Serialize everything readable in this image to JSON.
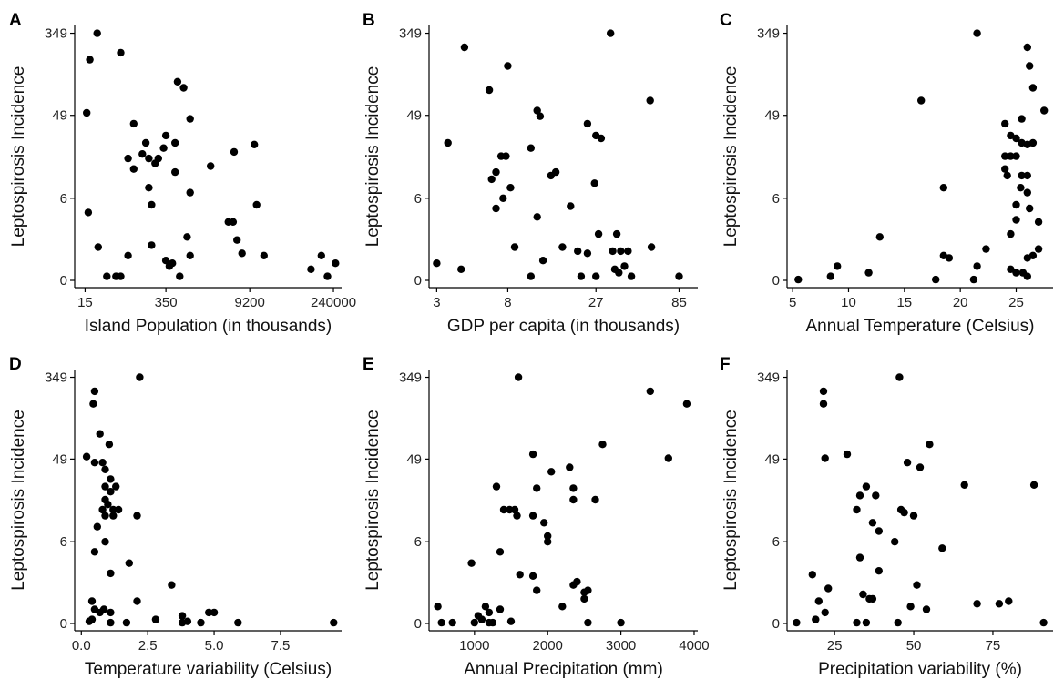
{
  "colors": {
    "point": "#000000",
    "axis": "#000000",
    "background": "#ffffff"
  },
  "chart_data": [
    {
      "panel": "A",
      "type": "scatter",
      "xlabel": "Island Population (in thousands)",
      "ylabel": "Leptospirosis Incidence",
      "xscale": "log",
      "yscale": "log1p",
      "xticks": [
        15,
        350,
        9200,
        240000
      ],
      "xtick_labels": [
        "15",
        "350",
        "9200",
        "240000"
      ],
      "yticks": [
        0,
        6,
        49,
        349
      ],
      "ytick_labels": [
        "0",
        "6",
        "49",
        "349"
      ],
      "xlim": [
        10,
        330000
      ],
      "ylim": [
        0,
        420
      ],
      "points": [
        [
          18,
          186
        ],
        [
          24,
          349
        ],
        [
          60,
          220
        ],
        [
          16,
          52
        ],
        [
          100,
          40
        ],
        [
          350,
          30
        ],
        [
          550,
          110
        ],
        [
          700,
          95
        ],
        [
          160,
          25
        ],
        [
          500,
          25
        ],
        [
          900,
          45
        ],
        [
          180,
          17
        ],
        [
          140,
          19
        ],
        [
          230,
          15
        ],
        [
          320,
          22
        ],
        [
          260,
          17
        ],
        [
          80,
          17
        ],
        [
          100,
          13
        ],
        [
          180,
          8
        ],
        [
          500,
          12
        ],
        [
          2000,
          14
        ],
        [
          200,
          5
        ],
        [
          5000,
          20
        ],
        [
          11000,
          24
        ],
        [
          12000,
          5
        ],
        [
          900,
          7
        ],
        [
          4000,
          3
        ],
        [
          4800,
          3
        ],
        [
          5600,
          1.6
        ],
        [
          17,
          4
        ],
        [
          800,
          1.8
        ],
        [
          25,
          1.2
        ],
        [
          200,
          1.3
        ],
        [
          80,
          0.8
        ],
        [
          400,
          0.4
        ],
        [
          350,
          0.6
        ],
        [
          450,
          0.5
        ],
        [
          900,
          0.8
        ],
        [
          35,
          0.1
        ],
        [
          50,
          0.1
        ],
        [
          60,
          0.1
        ],
        [
          600,
          0.1
        ],
        [
          6800,
          0.9
        ],
        [
          16000,
          0.8
        ],
        [
          100000,
          0.3
        ],
        [
          150000,
          0.8
        ],
        [
          190000,
          0.1
        ],
        [
          260000,
          0.5
        ]
      ]
    },
    {
      "panel": "B",
      "type": "scatter",
      "xlabel": "GDP per capita (in thousands)",
      "ylabel": "Leptospirosis Incidence",
      "xscale": "log",
      "yscale": "log1p",
      "xticks": [
        3,
        8,
        27,
        85
      ],
      "xtick_labels": [
        "3",
        "8",
        "27",
        "85"
      ],
      "yticks": [
        0,
        6,
        49,
        349
      ],
      "ytick_labels": [
        "0",
        "6",
        "49",
        "349"
      ],
      "xlim": [
        2.7,
        110
      ],
      "ylim": [
        0,
        420
      ],
      "points": [
        [
          4.4,
          250
        ],
        [
          33,
          349
        ],
        [
          8,
          160
        ],
        [
          6.2,
          90
        ],
        [
          12,
          55
        ],
        [
          12.5,
          48
        ],
        [
          24,
          40
        ],
        [
          27,
          30
        ],
        [
          29,
          28
        ],
        [
          57,
          70
        ],
        [
          3.5,
          25
        ],
        [
          7.3,
          18
        ],
        [
          7.8,
          18
        ],
        [
          11,
          22
        ],
        [
          6.4,
          10
        ],
        [
          6.8,
          12
        ],
        [
          8.3,
          8
        ],
        [
          7.5,
          6
        ],
        [
          14.5,
          11
        ],
        [
          15.5,
          12
        ],
        [
          26.5,
          9
        ],
        [
          6.8,
          4.5
        ],
        [
          19,
          4.8
        ],
        [
          12,
          3.5
        ],
        [
          28,
          2
        ],
        [
          36,
          2
        ],
        [
          8.8,
          1.2
        ],
        [
          17,
          1.2
        ],
        [
          21,
          1
        ],
        [
          24,
          0.9
        ],
        [
          34,
          1
        ],
        [
          38,
          1
        ],
        [
          42,
          1
        ],
        [
          58,
          1.2
        ],
        [
          3,
          0.5
        ],
        [
          4.2,
          0.3
        ],
        [
          11,
          0.1
        ],
        [
          13,
          0.6
        ],
        [
          22,
          0.1
        ],
        [
          27,
          0.1
        ],
        [
          35,
          0.3
        ],
        [
          37,
          0.2
        ],
        [
          40,
          0.4
        ],
        [
          44,
          0.1
        ],
        [
          85,
          0.1
        ]
      ]
    },
    {
      "panel": "C",
      "type": "scatter",
      "xlabel": "Annual Temperature (Celsius)",
      "ylabel": "Leptospirosis Incidence",
      "xscale": "linear",
      "yscale": "log1p",
      "xticks": [
        5,
        10,
        15,
        20,
        25
      ],
      "xtick_labels": [
        "5",
        "10",
        "15",
        "20",
        "25"
      ],
      "yticks": [
        0,
        6,
        49,
        349
      ],
      "ytick_labels": [
        "0",
        "6",
        "49",
        "349"
      ],
      "xlim": [
        4.5,
        28.3
      ],
      "ylim": [
        0,
        420
      ],
      "points": [
        [
          21.5,
          349
        ],
        [
          26,
          250
        ],
        [
          26.2,
          160
        ],
        [
          26.5,
          95
        ],
        [
          27.5,
          55
        ],
        [
          16.5,
          70
        ],
        [
          24,
          40
        ],
        [
          25.5,
          45
        ],
        [
          24.5,
          30
        ],
        [
          25,
          28
        ],
        [
          25.5,
          25
        ],
        [
          26,
          24
        ],
        [
          26.5,
          25
        ],
        [
          24,
          18
        ],
        [
          24.5,
          18
        ],
        [
          25,
          18
        ],
        [
          24,
          13
        ],
        [
          24.2,
          11
        ],
        [
          25.5,
          11
        ],
        [
          26,
          11
        ],
        [
          25.4,
          8
        ],
        [
          26,
          7
        ],
        [
          18.5,
          8
        ],
        [
          25,
          5
        ],
        [
          26.2,
          4.5
        ],
        [
          25,
          3.2
        ],
        [
          27,
          3
        ],
        [
          24.5,
          2
        ],
        [
          12.8,
          1.8
        ],
        [
          22.3,
          1.1
        ],
        [
          27,
          1.1
        ],
        [
          26.5,
          0.8
        ],
        [
          18.5,
          0.8
        ],
        [
          19,
          0.7
        ],
        [
          26,
          0.7
        ],
        [
          21.5,
          0.4
        ],
        [
          24.5,
          0.3
        ],
        [
          25,
          0.2
        ],
        [
          25.6,
          0.2
        ],
        [
          26,
          0.1
        ],
        [
          9,
          0.4
        ],
        [
          11.8,
          0.2
        ],
        [
          8.4,
          0.1
        ],
        [
          5.5,
          0.02
        ],
        [
          17.8,
          0.02
        ],
        [
          21.2,
          0.02
        ]
      ]
    },
    {
      "panel": "D",
      "type": "scatter",
      "xlabel": "Temperature variability (Celsius)",
      "ylabel": "Leptospirosis Incidence",
      "xscale": "linear",
      "yscale": "log1p",
      "xticks": [
        0.0,
        2.5,
        5.0,
        7.5
      ],
      "xtick_labels": [
        "0.0",
        "2.5",
        "5.0",
        "7.5"
      ],
      "yticks": [
        0,
        6,
        49,
        349
      ],
      "ytick_labels": [
        "0",
        "6",
        "49",
        "349"
      ],
      "xlim": [
        -0.25,
        9.8
      ],
      "ylim": [
        0,
        420
      ],
      "points": [
        [
          2.2,
          349
        ],
        [
          0.5,
          250
        ],
        [
          0.45,
          185
        ],
        [
          0.7,
          90
        ],
        [
          0.2,
          52
        ],
        [
          1.05,
          70
        ],
        [
          0.5,
          45
        ],
        [
          0.9,
          38
        ],
        [
          0.8,
          45
        ],
        [
          1.1,
          30
        ],
        [
          0.9,
          25
        ],
        [
          1.3,
          25
        ],
        [
          1.1,
          22
        ],
        [
          0.9,
          18
        ],
        [
          1.0,
          16
        ],
        [
          0.8,
          14
        ],
        [
          1.2,
          14
        ],
        [
          1.4,
          14
        ],
        [
          0.9,
          12
        ],
        [
          1.2,
          12
        ],
        [
          2.1,
          12
        ],
        [
          0.6,
          9
        ],
        [
          0.9,
          6
        ],
        [
          0.5,
          4.5
        ],
        [
          1.8,
          3.2
        ],
        [
          1.1,
          2.3
        ],
        [
          3.4,
          1.5
        ],
        [
          2.1,
          0.7
        ],
        [
          0.4,
          0.7
        ],
        [
          0.5,
          0.4
        ],
        [
          0.7,
          0.3
        ],
        [
          1.1,
          0.3
        ],
        [
          0.85,
          0.4
        ],
        [
          4.8,
          0.3
        ],
        [
          5.0,
          0.3
        ],
        [
          0.3,
          0.05
        ],
        [
          0.4,
          0.1
        ],
        [
          3.8,
          0.2
        ],
        [
          2.8,
          0.1
        ],
        [
          4.0,
          0.05
        ],
        [
          4.5,
          0.02
        ],
        [
          1.1,
          0.02
        ],
        [
          1.7,
          0.02
        ],
        [
          3.8,
          0.02
        ],
        [
          5.9,
          0.02
        ],
        [
          9.5,
          0.02
        ]
      ]
    },
    {
      "panel": "E",
      "type": "scatter",
      "xlabel": "Annual Precipitation (mm)",
      "ylabel": "Leptospirosis Incidence",
      "xscale": "linear",
      "yscale": "log1p",
      "xticks": [
        1000,
        2000,
        3000,
        4000
      ],
      "xtick_labels": [
        "1000",
        "2000",
        "3000",
        "4000"
      ],
      "yticks": [
        0,
        6,
        49,
        349
      ],
      "ytick_labels": [
        "0",
        "6",
        "49",
        "349"
      ],
      "xlim": [
        380,
        4050
      ],
      "ylim": [
        0,
        420
      ],
      "points": [
        [
          1600,
          349
        ],
        [
          3400,
          250
        ],
        [
          3900,
          185
        ],
        [
          2750,
          70
        ],
        [
          1800,
          55
        ],
        [
          3650,
          50
        ],
        [
          2300,
          40
        ],
        [
          2050,
          36
        ],
        [
          1300,
          25
        ],
        [
          1850,
          24
        ],
        [
          2350,
          24
        ],
        [
          2650,
          18
        ],
        [
          2350,
          18
        ],
        [
          1400,
          14
        ],
        [
          1480,
          14
        ],
        [
          1550,
          14
        ],
        [
          1580,
          12
        ],
        [
          1800,
          12
        ],
        [
          1950,
          10
        ],
        [
          2000,
          7
        ],
        [
          2000,
          6
        ],
        [
          1350,
          4.5
        ],
        [
          960,
          3.2
        ],
        [
          1620,
          2.2
        ],
        [
          1800,
          2.1
        ],
        [
          2350,
          1.5
        ],
        [
          2400,
          1.7
        ],
        [
          1850,
          1.2
        ],
        [
          2500,
          1.1
        ],
        [
          2550,
          1.2
        ],
        [
          2500,
          0.8
        ],
        [
          2200,
          0.5
        ],
        [
          1150,
          0.5
        ],
        [
          500,
          0.5
        ],
        [
          1200,
          0.3
        ],
        [
          1050,
          0.2
        ],
        [
          1100,
          0.1
        ],
        [
          1350,
          0.4
        ],
        [
          1200,
          0.02
        ],
        [
          1500,
          0.05
        ],
        [
          1250,
          0.02
        ],
        [
          1000,
          0.02
        ],
        [
          550,
          0.02
        ],
        [
          700,
          0.02
        ],
        [
          3000,
          0.02
        ],
        [
          2550,
          0.02
        ]
      ]
    },
    {
      "panel": "F",
      "type": "scatter",
      "xlabel": "Precipitation variability (%)",
      "ylabel": "Leptospirosis Incidence",
      "xscale": "linear",
      "yscale": "log1p",
      "xticks": [
        25,
        50,
        75
      ],
      "xtick_labels": [
        "25",
        "50",
        "75"
      ],
      "yticks": [
        0,
        6,
        49,
        349
      ],
      "ytick_labels": [
        "0",
        "6",
        "49",
        "349"
      ],
      "xlim": [
        10,
        94
      ],
      "ylim": [
        0,
        420
      ],
      "points": [
        [
          45.5,
          349
        ],
        [
          21.5,
          250
        ],
        [
          21.5,
          185
        ],
        [
          55,
          70
        ],
        [
          29,
          55
        ],
        [
          22,
          50
        ],
        [
          48,
          45
        ],
        [
          52,
          40
        ],
        [
          35,
          25
        ],
        [
          66,
          26
        ],
        [
          88,
          26
        ],
        [
          33,
          20
        ],
        [
          38,
          20
        ],
        [
          32,
          14
        ],
        [
          46,
          14
        ],
        [
          47,
          13
        ],
        [
          50,
          12
        ],
        [
          37,
          10
        ],
        [
          39,
          8
        ],
        [
          44,
          6
        ],
        [
          59,
          5
        ],
        [
          33,
          3.8
        ],
        [
          18,
          2.2
        ],
        [
          39,
          2.5
        ],
        [
          23,
          1.3
        ],
        [
          51,
          1.5
        ],
        [
          34,
          1
        ],
        [
          36,
          0.8
        ],
        [
          20,
          0.7
        ],
        [
          37,
          0.8
        ],
        [
          49,
          0.5
        ],
        [
          54,
          0.4
        ],
        [
          70,
          0.6
        ],
        [
          77,
          0.6
        ],
        [
          80,
          0.7
        ],
        [
          22,
          0.3
        ],
        [
          19,
          0.1
        ],
        [
          13,
          0.02
        ],
        [
          32,
          0.02
        ],
        [
          35,
          0.02
        ],
        [
          45,
          0.02
        ],
        [
          91,
          0.02
        ]
      ]
    }
  ]
}
